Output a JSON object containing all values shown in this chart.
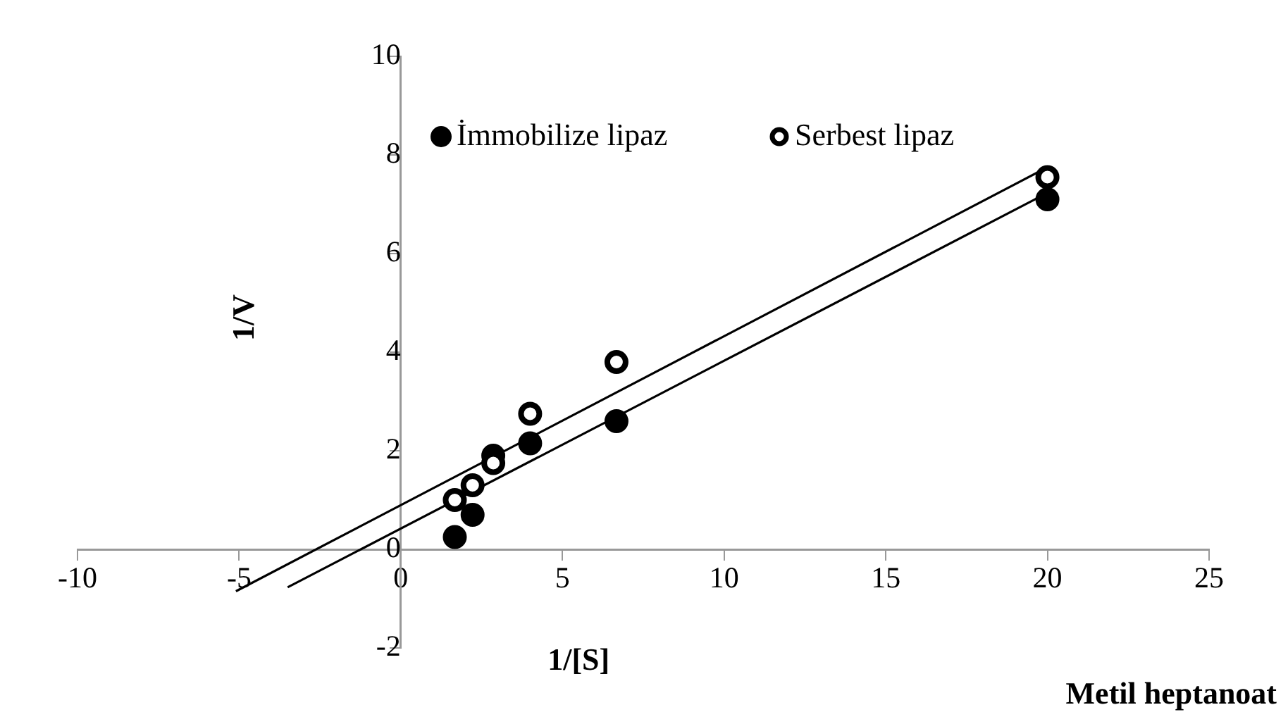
{
  "chart_data": {
    "type": "scatter",
    "xlabel": "1/[S]",
    "ylabel": "1/V",
    "annotations": [
      "Metil heptanoat"
    ],
    "xlim": [
      -10,
      25
    ],
    "xticks": [
      -10,
      -5,
      0,
      5,
      10,
      15,
      20,
      25
    ],
    "ylim": [
      -2,
      10
    ],
    "yticks": [
      -2,
      0,
      2,
      4,
      6,
      8,
      10
    ],
    "grid": false,
    "legend": "top right",
    "marker": "circle",
    "series": [
      {
        "name": "İmmobilize lipaz",
        "color": "#000000",
        "x": [
          1.67,
          2.22,
          2.86,
          4,
          6.67,
          20
        ],
        "values": [
          0.25,
          0.7,
          1.9,
          2.15,
          2.6,
          7.1
        ]
      },
      {
        "name": "Serbest lipaz",
        "color": "#000000",
        "x": [
          1.67,
          2.22,
          2.86,
          4,
          6.67,
          20
        ],
        "values": [
          1.0,
          1.3,
          1.75,
          2.75,
          3.8,
          7.55
        ]
      },
      {
        "type": "line",
        "color": "#000000",
        "marker": "none",
        "x": [
          -3.5,
          20
        ],
        "values": [
          -0.77,
          7.23
        ]
      },
      {
        "type": "line",
        "color": "#000000",
        "marker": "none",
        "x": [
          -5.1,
          20
        ],
        "values": [
          -0.85,
          7.75
        ]
      }
    ]
  }
}
